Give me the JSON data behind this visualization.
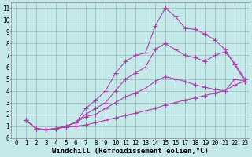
{
  "xlabel": "Windchill (Refroidissement éolien,°C)",
  "background_color": "#c5e8e8",
  "line_color": "#aa44aa",
  "grid_color": "#99bbbb",
  "xlim": [
    -0.5,
    23.5
  ],
  "ylim": [
    0,
    11.5
  ],
  "xticks": [
    0,
    1,
    2,
    3,
    4,
    5,
    6,
    7,
    8,
    9,
    10,
    11,
    12,
    13,
    14,
    15,
    16,
    17,
    18,
    19,
    20,
    21,
    22,
    23
  ],
  "yticks": [
    0,
    1,
    2,
    3,
    4,
    5,
    6,
    7,
    8,
    9,
    10,
    11
  ],
  "lines": [
    {
      "x": [
        1,
        2,
        3,
        4,
        5,
        6,
        7,
        8,
        9,
        10,
        11,
        12,
        13,
        14,
        15,
        16,
        17,
        18,
        19,
        20,
        21,
        22,
        23
      ],
      "y": [
        1.5,
        0.8,
        0.7,
        0.8,
        1.0,
        1.3,
        2.5,
        3.2,
        4.0,
        5.5,
        6.5,
        7.0,
        7.2,
        9.5,
        11.0,
        10.3,
        9.3,
        9.2,
        8.8,
        8.3,
        7.5,
        6.2,
        4.8
      ]
    },
    {
      "x": [
        1,
        2,
        3,
        4,
        5,
        6,
        7,
        8,
        9,
        10,
        11,
        12,
        13,
        14,
        15,
        16,
        17,
        18,
        19,
        20,
        21,
        22,
        23
      ],
      "y": [
        1.5,
        0.8,
        0.7,
        0.8,
        1.0,
        1.3,
        2.0,
        2.5,
        3.0,
        4.0,
        5.0,
        5.5,
        6.0,
        7.5,
        8.0,
        7.5,
        7.0,
        6.8,
        6.5,
        7.0,
        7.3,
        6.3,
        5.0
      ]
    },
    {
      "x": [
        1,
        2,
        3,
        4,
        5,
        6,
        7,
        8,
        9,
        10,
        11,
        12,
        13,
        14,
        15,
        16,
        17,
        18,
        19,
        20,
        21,
        22,
        23
      ],
      "y": [
        1.5,
        0.8,
        0.7,
        0.8,
        1.0,
        1.3,
        1.8,
        2.0,
        2.5,
        3.0,
        3.5,
        3.8,
        4.2,
        4.8,
        5.2,
        5.0,
        4.8,
        4.5,
        4.3,
        4.1,
        4.0,
        5.0,
        4.8
      ]
    },
    {
      "x": [
        1,
        2,
        3,
        4,
        5,
        6,
        7,
        8,
        9,
        10,
        11,
        12,
        13,
        14,
        15,
        16,
        17,
        18,
        19,
        20,
        21,
        22,
        23
      ],
      "y": [
        1.5,
        0.8,
        0.7,
        0.8,
        0.9,
        1.0,
        1.1,
        1.3,
        1.5,
        1.7,
        1.9,
        2.1,
        2.3,
        2.5,
        2.8,
        3.0,
        3.2,
        3.4,
        3.6,
        3.8,
        4.0,
        4.5,
        4.8
      ]
    }
  ],
  "marker": "+",
  "markersize": 4,
  "linewidth": 0.8,
  "xlabel_fontsize": 6.5,
  "tick_fontsize": 5.5
}
